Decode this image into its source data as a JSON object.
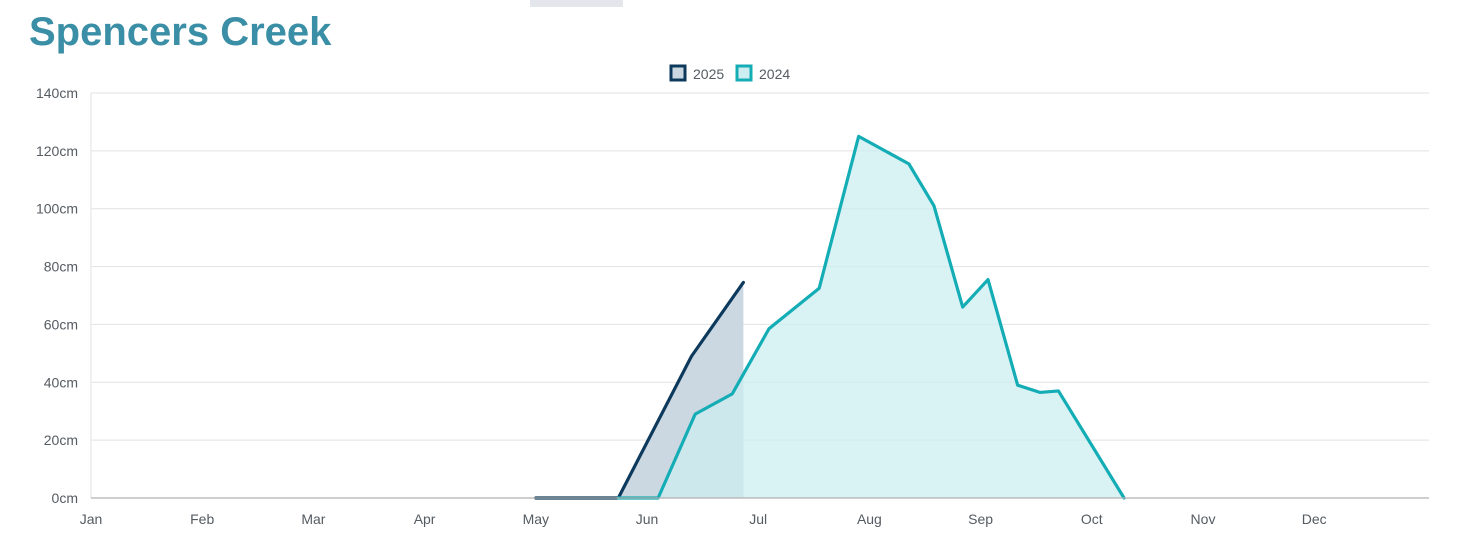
{
  "page": {
    "title": "Spencers Creek"
  },
  "colors": {
    "title": "#3a8fa6",
    "series_2025_line": "#0d3a5c",
    "series_2025_fill": "#ccd8e1",
    "series_2024_line": "#14adb5",
    "series_2024_fill": "#cceef0",
    "grid": "#e2e2e2",
    "axis": "#b0b0b0"
  },
  "chart_data": {
    "type": "area",
    "title": "",
    "xlabel": "",
    "ylabel": "",
    "y_unit": "cm",
    "ylim": [
      0,
      140
    ],
    "y_ticks": [
      0,
      20,
      40,
      60,
      80,
      100,
      120,
      140
    ],
    "y_tick_labels": [
      "0cm",
      "20cm",
      "40cm",
      "60cm",
      "80cm",
      "100cm",
      "120cm",
      "140cm"
    ],
    "x_tick_labels": [
      "Jan",
      "Feb",
      "Mar",
      "Apr",
      "May",
      "Jun",
      "Jul",
      "Aug",
      "Sep",
      "Oct",
      "Nov",
      "Dec"
    ],
    "grid": true,
    "legend_position": "top-center",
    "series": [
      {
        "name": "2025",
        "color": "#0d3a5c",
        "fill": "#ccd8e1",
        "points": [
          {
            "date": "2025-05-01",
            "value": 0
          },
          {
            "date": "2025-05-24",
            "value": 0
          },
          {
            "date": "2025-06-13",
            "value": 49
          },
          {
            "date": "2025-06-27",
            "value": 74.5
          }
        ]
      },
      {
        "name": "2024",
        "color": "#14adb5",
        "fill": "#cceef0",
        "points": [
          {
            "date": "2024-05-24",
            "value": 0
          },
          {
            "date": "2024-06-04",
            "value": 0
          },
          {
            "date": "2024-06-14",
            "value": 29
          },
          {
            "date": "2024-06-24",
            "value": 36
          },
          {
            "date": "2024-07-04",
            "value": 58.5
          },
          {
            "date": "2024-07-18",
            "value": 72.5
          },
          {
            "date": "2024-07-29",
            "value": 125
          },
          {
            "date": "2024-08-12",
            "value": 115.5
          },
          {
            "date": "2024-08-19",
            "value": 101
          },
          {
            "date": "2024-08-27",
            "value": 66
          },
          {
            "date": "2024-09-03",
            "value": 75.5
          },
          {
            "date": "2024-09-11",
            "value": 39
          },
          {
            "date": "2024-09-17",
            "value": 36.5
          },
          {
            "date": "2024-09-22",
            "value": 37
          },
          {
            "date": "2024-10-10",
            "value": 0
          }
        ]
      }
    ]
  }
}
